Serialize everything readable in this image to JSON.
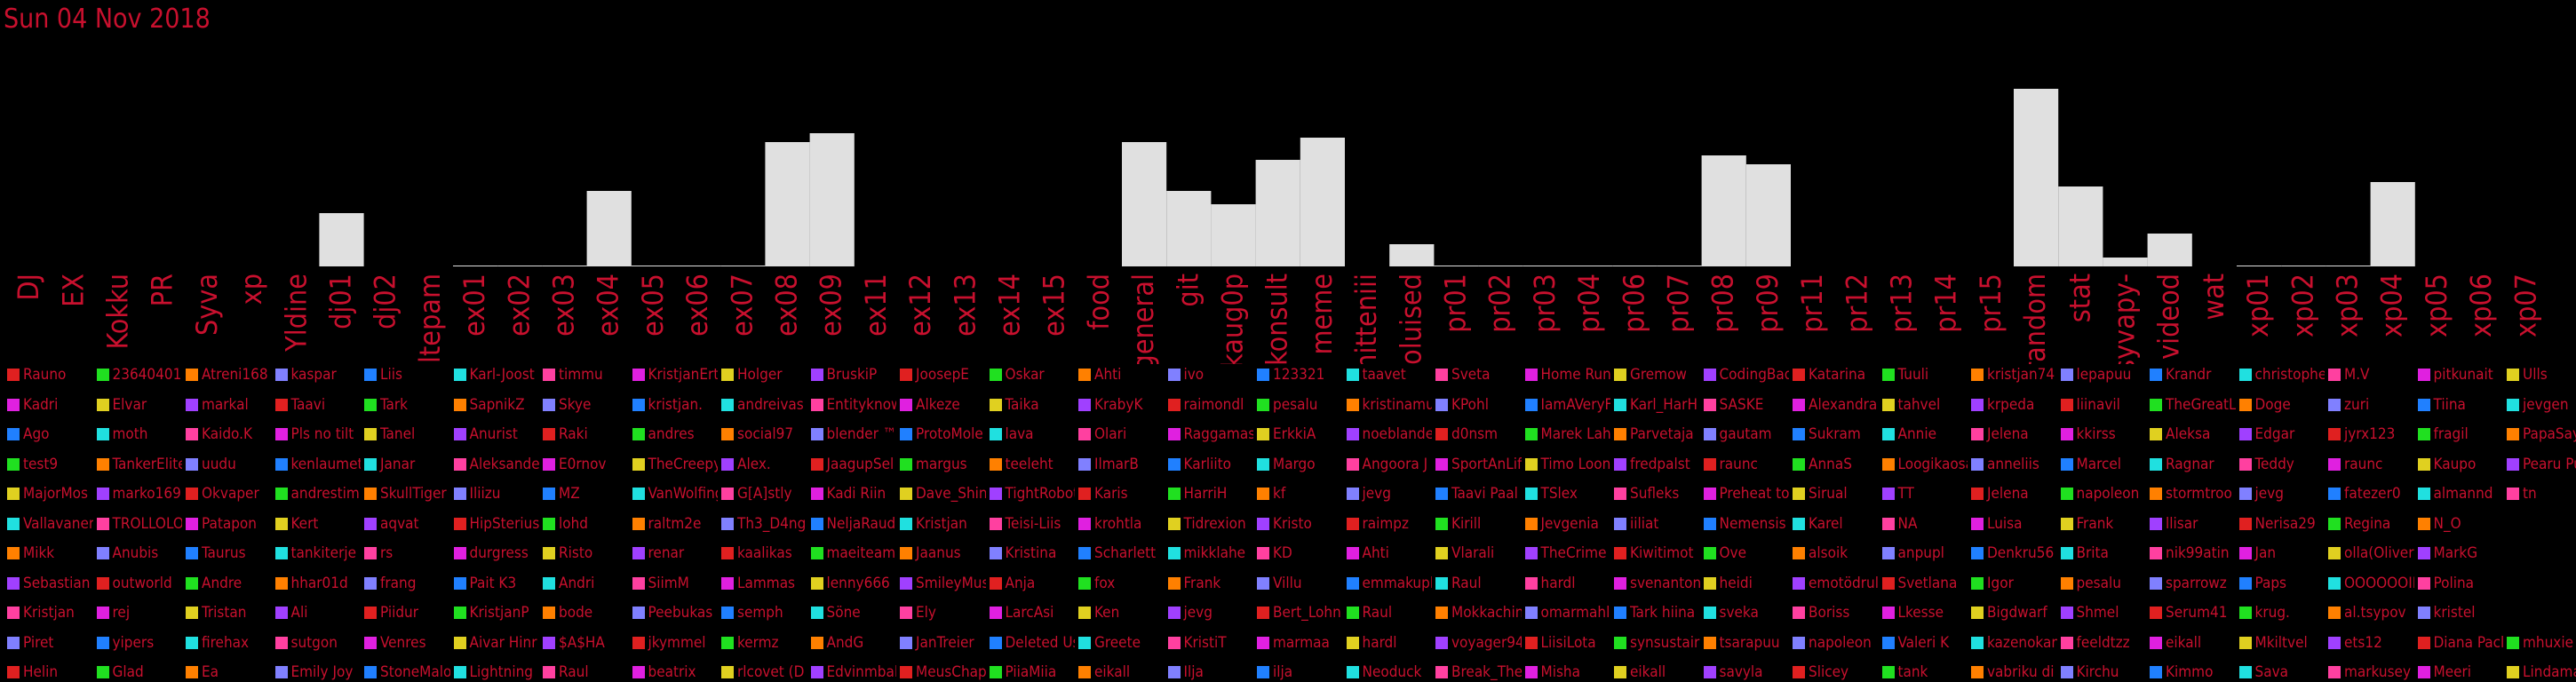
{
  "title": "Sun 04 Nov 2018",
  "chart_data": {
    "type": "bar",
    "title": "Sun 04 Nov 2018",
    "grid": false,
    "legend": "bottom",
    "categories": [
      "DJ",
      "EX",
      "Kokku",
      "PR",
      "Syva",
      "xp",
      "Yldine",
      "dj01",
      "dj02",
      "eltepam",
      "ex01",
      "ex02",
      "ex03",
      "ex04",
      "ex05",
      "ex06",
      "ex07",
      "ex08",
      "ex09",
      "ex11",
      "ex12",
      "ex13",
      "ex14",
      "ex15",
      "food",
      "general",
      "git",
      "kaug0p",
      "konsult",
      "meme",
      "mitteniii",
      "oluised",
      "pr01",
      "pr02",
      "pr03",
      "pr04",
      "pr06",
      "pr07",
      "pr08",
      "pr09",
      "pr11",
      "pr12",
      "pr13",
      "pr14",
      "pr15",
      "random",
      "stat",
      "syvapy-",
      "videod",
      "wat",
      "xp01",
      "xp02",
      "xp03",
      "xp04",
      "xp05",
      "xp06",
      "xp07"
    ],
    "values": [
      0,
      0,
      0,
      0,
      0,
      0,
      0,
      6,
      0,
      0,
      0.1,
      0.1,
      0.1,
      8.5,
      0.1,
      0.1,
      0.1,
      14,
      15,
      0,
      0,
      0,
      0,
      0,
      0,
      14,
      8.5,
      7,
      12,
      14.5,
      0,
      2.5,
      0.1,
      0.1,
      0.1,
      0.1,
      0.1,
      0.1,
      12.5,
      11.5,
      0,
      0,
      0,
      0,
      0,
      20,
      9,
      1,
      3.7,
      0,
      0.1,
      0.1,
      0.1,
      9.5,
      0,
      0,
      0
    ],
    "ylim": [
      0,
      20
    ],
    "legend_colors": [
      "#e02020",
      "#e020e0",
      "#2080ff",
      "#20e020",
      "#e0d020",
      "#20e0e0",
      "#ff8000",
      "#a040ff",
      "#ff40a0",
      "#8080ff"
    ]
  },
  "legend": [
    [
      "Rauno",
      "Kadri",
      "Ago",
      "test9",
      "MajorMos",
      "Vallavanem",
      "Mikk",
      "Sebastian",
      "Kristjan",
      "Piret",
      "Helin"
    ],
    [
      "23640401",
      "Elvar",
      "moth",
      "TankerElite",
      "marko169",
      "TROLLOLOL",
      "Anubis",
      "outworld",
      "rej",
      "yipers",
      "Glad"
    ],
    [
      "Atreni168",
      "markal",
      "Kaido.K",
      "uudu",
      "Okvaper",
      "Patapon",
      "Taurus",
      "Andre",
      "Tristan",
      "firehax",
      "Ea"
    ],
    [
      "kaspar",
      "Taavi",
      "Pls no tilt",
      "kenlaumet",
      "andrestim",
      "Kert",
      "tankiterje",
      "hhar01d",
      "Ali",
      "sutgon",
      "Emily Joy"
    ],
    [
      "Liis",
      "Tark",
      "Tanel",
      "Janar",
      "SkullTiger",
      "aqvat",
      "rs",
      "frang",
      "Piidur",
      "Venres",
      "StoneMalo"
    ],
    [
      "Karl-Joost",
      "SapnikZ",
      "Anurist",
      "Aleksande",
      "Iliizu",
      "HipSterius",
      "durgress",
      "Pait K3",
      "KristjanP",
      "Aivar Hinr",
      "Lightning"
    ],
    [
      "timmu",
      "Skye",
      "Raki",
      "E0rnov",
      "MZ",
      "lohd",
      "Risto",
      "Andri",
      "bode",
      "$A$HA",
      "Raul"
    ],
    [
      "KristjanErt",
      "kristjan.",
      "andres",
      "TheCreepy",
      "VanWolfing",
      "raltm2e",
      "renar",
      "SiimM",
      "Peebukas",
      "jkymmel",
      "beatrix"
    ],
    [
      "Holger",
      "andreivas",
      "social97",
      "Alex.",
      "G[A]stly",
      "Th3_D4ng",
      "kaalikas",
      "Lammas",
      "semph",
      "kermz",
      "rlcovet (D"
    ],
    [
      "BruskiP",
      "Entityknow",
      "blender ™",
      "JaagupSel",
      "Kadi Riin",
      "NeljaRaud",
      "maeiteami",
      "lenny666",
      "Söne",
      "AndG",
      "Edvinmbal"
    ],
    [
      "JoosepE",
      "Alkeze",
      "ProtoMole",
      "margus",
      "Dave_Shin",
      "Kristjan",
      "Jaanus",
      "SmileyMus",
      "Ely",
      "JanTreier",
      "MeusChap"
    ],
    [
      "Oskar",
      "Taika",
      "lava",
      "teeleht",
      "TightRobot",
      "Teisi-Liis",
      "Kristina",
      "Anja",
      "LarcAsi",
      "Deleted Us",
      "PiiaMiia"
    ],
    [
      "Ahti",
      "KrabyK",
      "Olari",
      "IlmarB",
      "Karis",
      "krohtla",
      "Scharlett",
      "fox",
      "Ken",
      "Greete",
      "eikall"
    ],
    [
      "ivo",
      "raimondl",
      "Raggamas",
      "Karliito",
      "HarriH",
      "Tidrexion",
      "mikklahe",
      "Frank",
      "jevg",
      "KristiT",
      "Ilja"
    ],
    [
      "123321",
      "pesalu",
      "ErkkiA",
      "Margo",
      "kf",
      "Kristo",
      "KD",
      "Villu",
      "Bert_Lohn",
      "marmaa",
      "ilja"
    ],
    [
      "taavet",
      "kristinamu",
      "noeblande",
      "Angoora J",
      "jevg",
      "raimpz",
      "Ahti",
      "emmakupl",
      "Raul",
      "hardl",
      "Neoduck"
    ],
    [
      "Sveta",
      "KPohl",
      "d0nsm",
      "SportAnLif",
      "Taavi Paal",
      "Kirill",
      "Vlarali",
      "Raul",
      "Mokkachin",
      "voyager94",
      "Break_The"
    ],
    [
      "Home Run",
      "IamAVeryF",
      "Marek Lah",
      "Timo Loon",
      "TSlex",
      "Jevgenia",
      "TheCrime",
      "hardl",
      "omarmahl",
      "LiisiLota",
      "Misha"
    ],
    [
      "Gremow",
      "Karl_HarH",
      "Parvetaja",
      "fredpalst",
      "Sufleks",
      "iiliat",
      "Kiwitimot",
      "svenanton",
      "Tark hiina",
      "synsustair",
      "eikall"
    ],
    [
      "CodingBad",
      "SASKE",
      "gautam",
      "raunc",
      "Preheat to",
      "Nemensis",
      "Ove",
      "heidi",
      "sveka",
      "tsarapuu",
      "savyla"
    ],
    [
      "Katarina",
      "Alexandra",
      "Sukram",
      "AnnaS",
      "Sirual",
      "Karel",
      "alsoik",
      "emotödrul",
      "Boriss",
      "napoleon",
      "Slicey"
    ],
    [
      "Tuuli",
      "tahvel",
      "Annie",
      "Loogikaosa",
      "TT",
      "NA",
      "anpupl",
      "Svetlana",
      "Lkesse",
      "Valeri K",
      "tank"
    ],
    [
      "kristjan74",
      "krpeda",
      "Jelena",
      "anneliis",
      "Jelena",
      "Luisa",
      "Denkru56",
      "Igor",
      "Bigdwarf",
      "kazenokan",
      "vabriku di"
    ],
    [
      "lepapuu",
      "liinavil",
      "kkirss",
      "Marcel",
      "napoleon",
      "Frank",
      "Brita",
      "pesalu",
      "Shmel",
      "feeldtzz",
      "Kirchu"
    ],
    [
      "Krandr",
      "TheGreatL",
      "Aleksa",
      "Ragnar",
      "stormtroo",
      "llisar",
      "nik99atin",
      "sparrowz",
      "Serum41",
      "eikall",
      "Kimmo"
    ],
    [
      "christophe",
      "Doge",
      "Edgar",
      "Teddy",
      "jevg",
      "Nerisa29",
      "Jan",
      "Paps",
      "krug.",
      "Mkiltvel",
      "Sava"
    ],
    [
      "M.V",
      "zuri",
      "jyrx123",
      "raunc",
      "fatezer0",
      "Regina",
      "olla(Oliver",
      "OOOOOOII",
      "al.tsypov",
      "ets12",
      "markusey"
    ],
    [
      "pitkunait",
      "Tiina",
      "fragil",
      "Kaupo",
      "almannd",
      "N_O",
      "MarkG",
      "Polina",
      "kristel",
      "Diana Pacl",
      "Meeri"
    ],
    [
      "Ulls",
      "jevgen",
      "PapaSay",
      "Pearu Pu",
      "tn",
      "",
      "",
      "",
      "",
      "mhuxie",
      "Lindamai"
    ]
  ]
}
